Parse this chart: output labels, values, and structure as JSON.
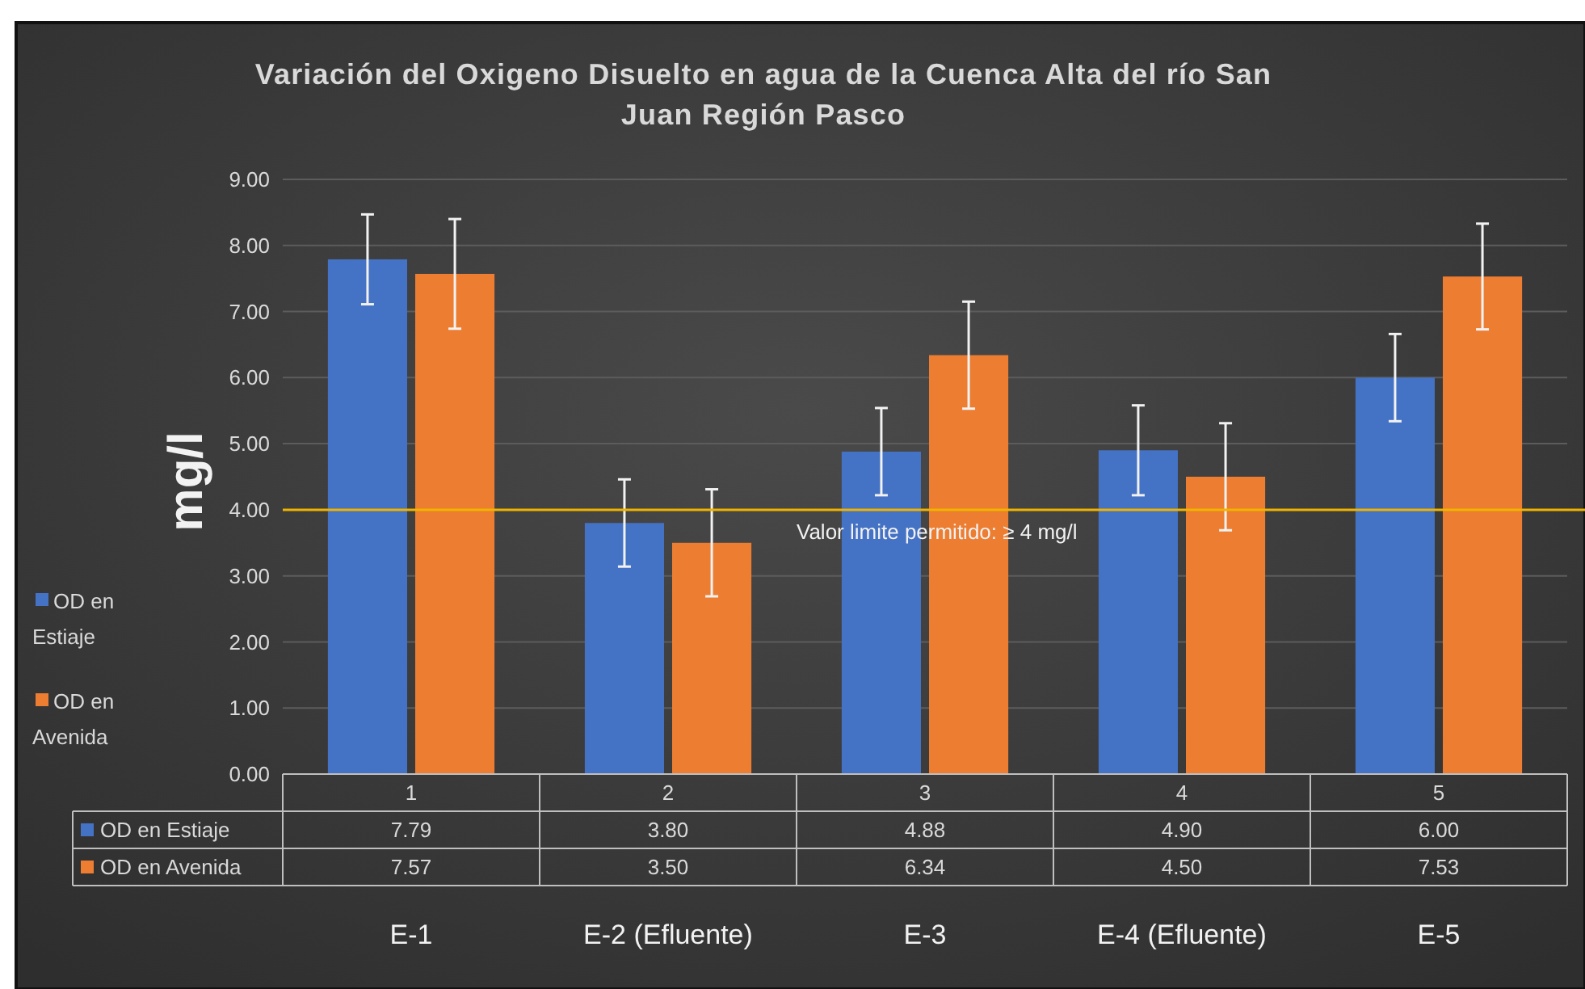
{
  "chart_data": {
    "type": "bar",
    "title": "Variación del Oxigeno Disuelto en agua de la Cuenca Alta del río San Juan Región Pasco",
    "ylabel": "mg/l",
    "categories": [
      "1",
      "2",
      "3",
      "4",
      "5"
    ],
    "series": [
      {
        "name": "OD en Estiaje",
        "color": "#4472c4",
        "values": [
          7.79,
          3.8,
          4.88,
          4.9,
          6.0
        ],
        "value_labels": [
          "7.79",
          "3.80",
          "4.88",
          "4.90",
          "6.00"
        ],
        "errors": [
          0.68,
          0.66,
          0.66,
          0.68,
          0.66
        ]
      },
      {
        "name": "OD en Avenida",
        "color": "#ed7d31",
        "values": [
          7.57,
          3.5,
          6.34,
          4.5,
          7.53
        ],
        "value_labels": [
          "7.57",
          "3.50",
          "6.34",
          "4.50",
          "7.53"
        ],
        "errors": [
          0.83,
          0.81,
          0.81,
          0.81,
          0.8
        ]
      }
    ],
    "ylim": [
      0,
      9
    ],
    "yticks": [
      {
        "value": 0,
        "label": "0.00"
      },
      {
        "value": 1,
        "label": "1.00"
      },
      {
        "value": 2,
        "label": "2.00"
      },
      {
        "value": 3,
        "label": "3.00"
      },
      {
        "value": 4,
        "label": "4.00"
      },
      {
        "value": 5,
        "label": "5.00"
      },
      {
        "value": 6,
        "label": "6.00"
      },
      {
        "value": 7,
        "label": "7.00"
      },
      {
        "value": 8,
        "label": "8.00"
      },
      {
        "value": 9,
        "label": "9.00"
      }
    ],
    "ref_lines": [
      {
        "axis": "y",
        "value": 4,
        "label": "Valor limite permitido:  ≥ 4  mg/l",
        "color": "#f0b400"
      }
    ],
    "annotations": [
      "E-1",
      "E-2 (Efluente)",
      "E-3",
      "E-4 (Efluente)",
      "E-5"
    ],
    "grid": "y",
    "legend": "left"
  }
}
